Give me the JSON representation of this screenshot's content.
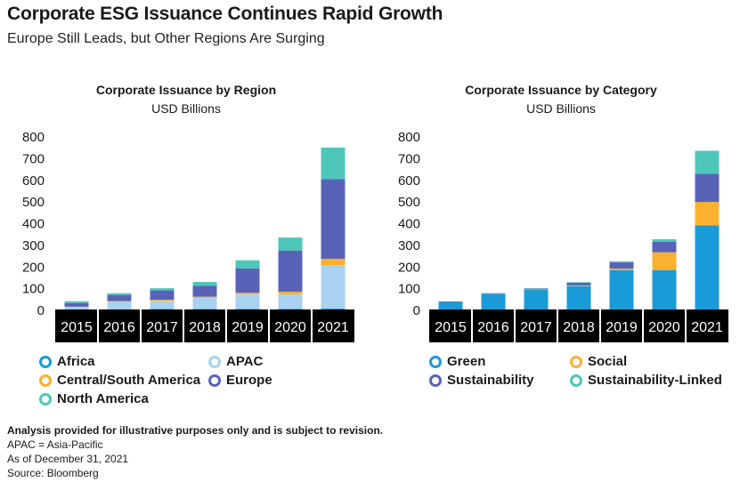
{
  "header": {
    "title": "Corporate ESG Issuance Continues Rapid Growth",
    "subtitle": "Europe Still Leads, but Other Regions Are Surging"
  },
  "colors": {
    "Africa": "#1a9ad6",
    "APAC": "#a9d1f0",
    "Central/South America": "#fbb12e",
    "Europe": "#5863b8",
    "North America": "#4ec6b8",
    "Green": "#1a9ad6",
    "Social": "#fbb12e",
    "Sustainability": "#5863b8",
    "Sustainability-Linked": "#4ec6b8"
  },
  "chart_data": [
    {
      "type": "bar",
      "stacked": true,
      "title": "Corporate Issuance by Region",
      "subtitle": "USD Billions",
      "categories": [
        "2015",
        "2016",
        "2017",
        "2018",
        "2019",
        "2020",
        "2021"
      ],
      "ylim": [
        0,
        800
      ],
      "yticks": [
        "0",
        "100",
        "200",
        "300",
        "400",
        "500",
        "600",
        "700",
        "800"
      ],
      "grid": false,
      "legend": "bottom",
      "series": [
        {
          "name": "Africa",
          "values": [
            1,
            1,
            2,
            2,
            2,
            3,
            4
          ]
        },
        {
          "name": "APAC",
          "values": [
            10,
            35,
            38,
            52,
            67,
            67,
            200
          ]
        },
        {
          "name": "Central/South America",
          "values": [
            2,
            3,
            5,
            5,
            8,
            12,
            30
          ]
        },
        {
          "name": "Europe",
          "values": [
            17,
            28,
            43,
            50,
            113,
            190,
            368
          ]
        },
        {
          "name": "North America",
          "values": [
            8,
            8,
            10,
            18,
            37,
            60,
            145
          ]
        }
      ]
    },
    {
      "type": "bar",
      "stacked": true,
      "title": "Corporate Issuance by Category",
      "subtitle": "USD Billions",
      "categories": [
        "2015",
        "2016",
        "2017",
        "2018",
        "2019",
        "2020",
        "2021"
      ],
      "ylim": [
        0,
        800
      ],
      "yticks": [
        "0",
        "100",
        "200",
        "300",
        "400",
        "500",
        "600",
        "700",
        "800"
      ],
      "grid": false,
      "legend": "bottom",
      "series": [
        {
          "name": "Green",
          "values": [
            35,
            72,
            90,
            108,
            182,
            182,
            388
          ]
        },
        {
          "name": "Social",
          "values": [
            0,
            1,
            2,
            3,
            7,
            82,
            108
          ]
        },
        {
          "name": "Sustainability",
          "values": [
            2,
            2,
            4,
            12,
            28,
            48,
            130
          ]
        },
        {
          "name": "Sustainability-Linked",
          "values": [
            0,
            0,
            2,
            3,
            5,
            12,
            106
          ]
        }
      ]
    }
  ],
  "footer": {
    "note": "Analysis provided for illustrative purposes only and is subject to revision.",
    "abbrev": "APAC = Asia-Pacific",
    "asof": "As of December 31, 2021",
    "source": "Source: Bloomberg"
  }
}
